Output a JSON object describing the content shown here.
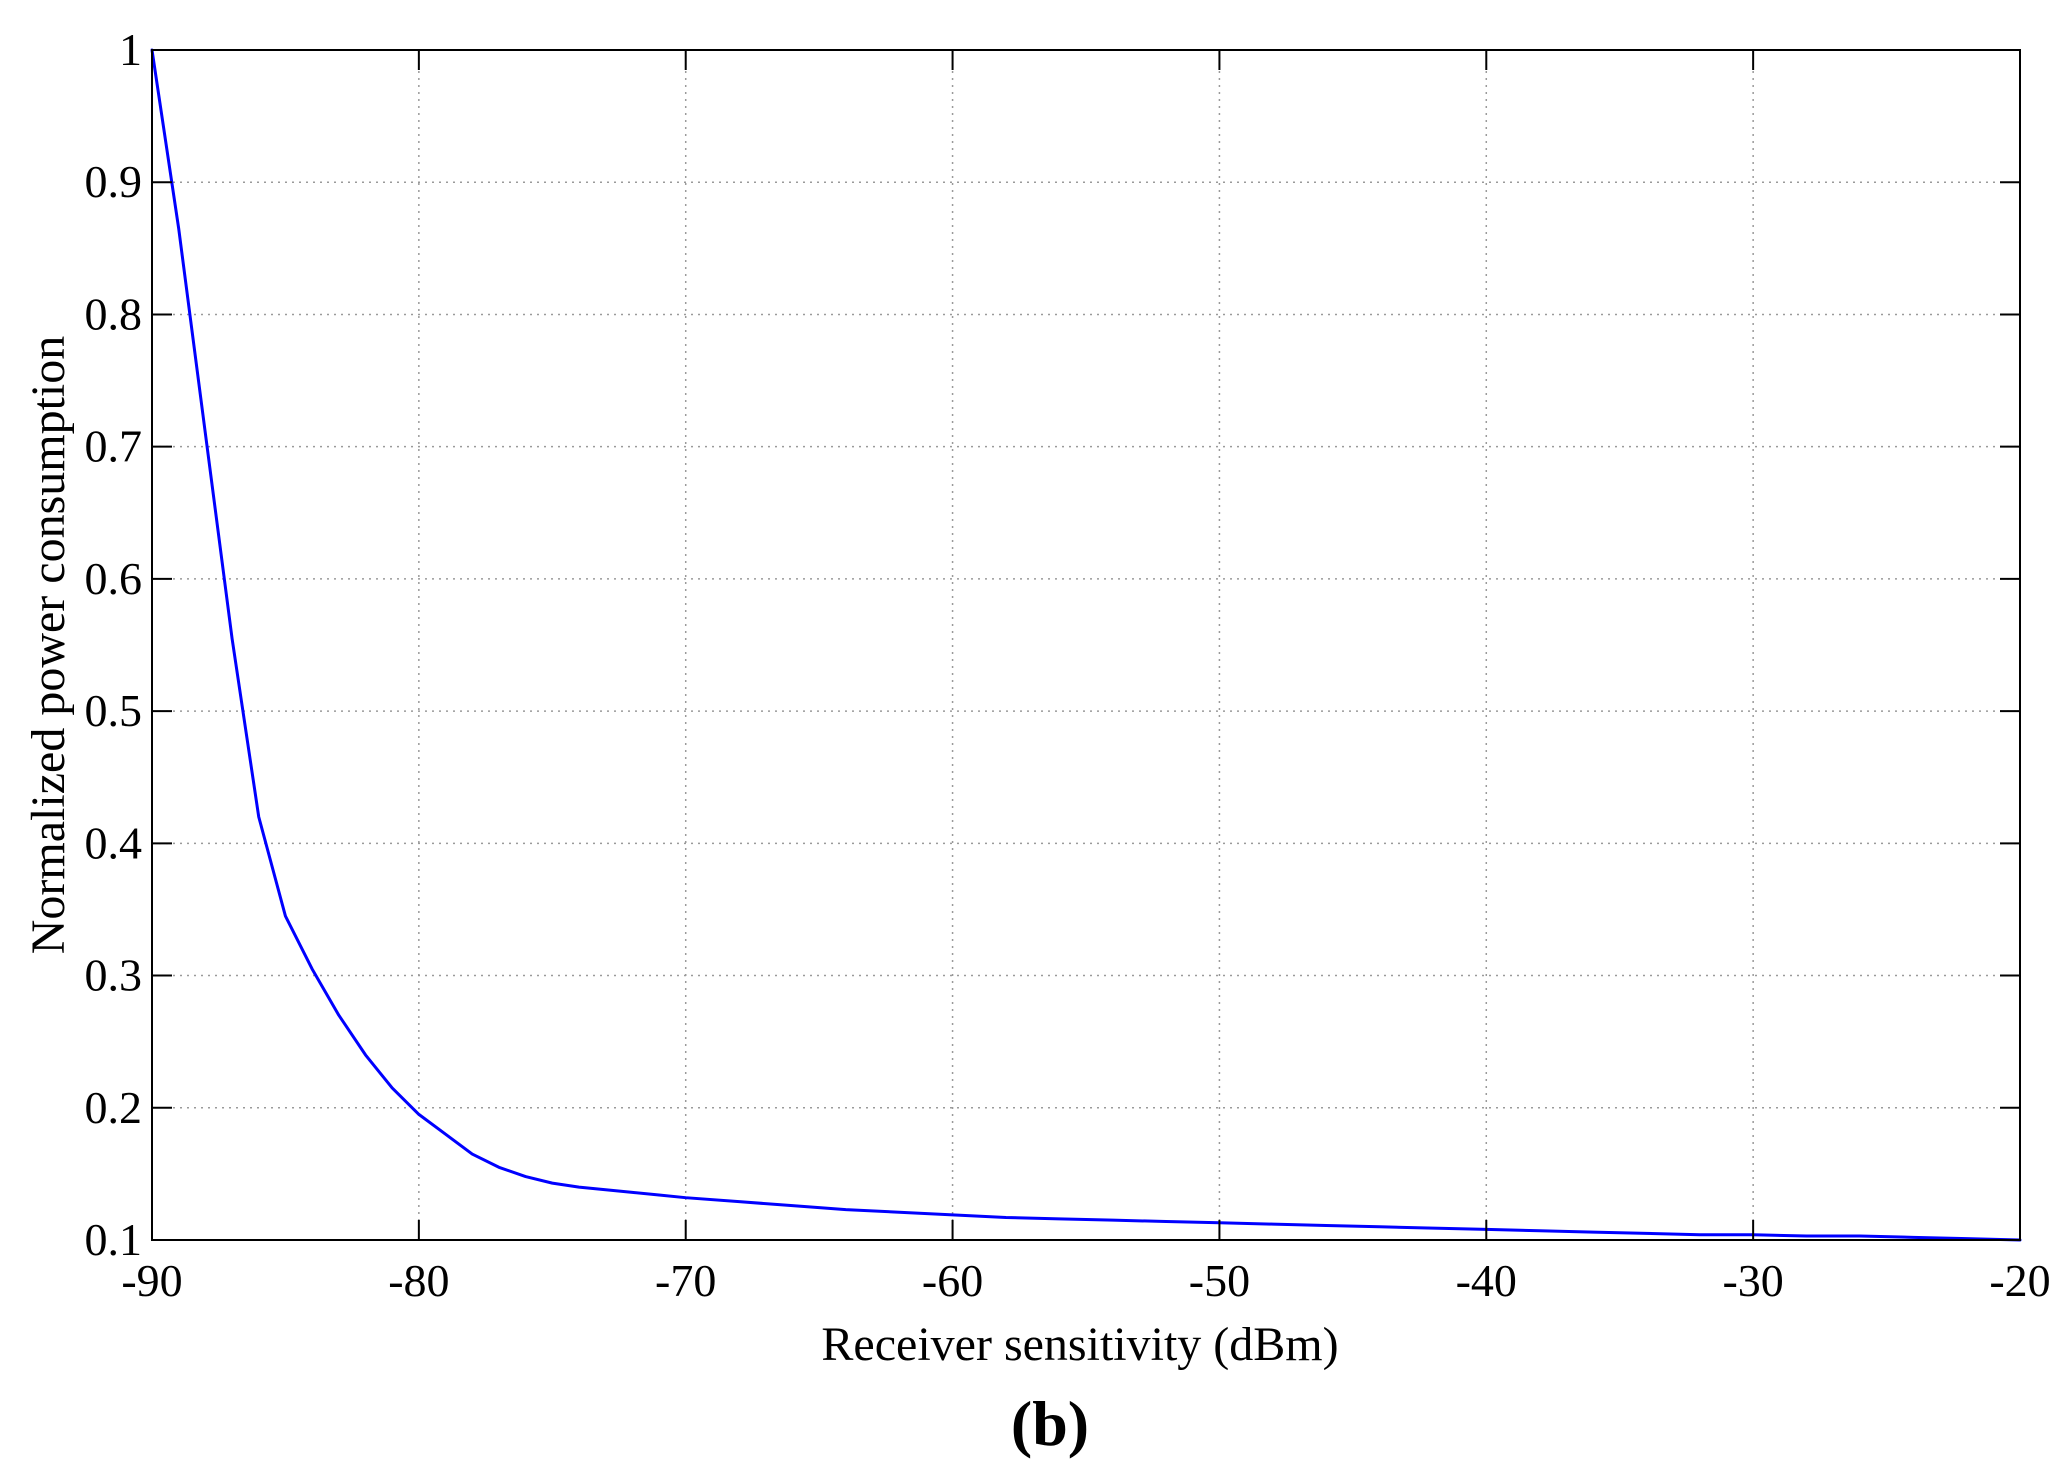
{
  "chart_data": {
    "type": "line",
    "title": "",
    "xlabel": "Receiver sensitivity (dBm)",
    "ylabel": "Normalized power consumption",
    "panel_label": "(b)",
    "xlim": [
      -90,
      -20
    ],
    "ylim": [
      0.1,
      1
    ],
    "xticks": [
      -90,
      -80,
      -70,
      -60,
      -50,
      -40,
      -30,
      -20
    ],
    "yticks": [
      0.1,
      0.2,
      0.3,
      0.4,
      0.5,
      0.6,
      0.7,
      0.8,
      0.9,
      1
    ],
    "xtick_labels": [
      "-90",
      "-80",
      "-70",
      "-60",
      "-50",
      "-40",
      "-30",
      "-20"
    ],
    "ytick_labels": [
      "0.1",
      "0.2",
      "0.3",
      "0.4",
      "0.5",
      "0.6",
      "0.7",
      "0.8",
      "0.9",
      "1"
    ],
    "grid": true,
    "legend": false,
    "colors": {
      "line": "#0000ff",
      "axes": "#000000",
      "grid": "#9a9a9a"
    },
    "series": [
      {
        "x": [
          -90,
          -89,
          -88,
          -87,
          -86,
          -85,
          -84,
          -83,
          -82,
          -81,
          -80,
          -79,
          -78,
          -77,
          -76,
          -75,
          -74,
          -73,
          -72,
          -71,
          -70,
          -68,
          -66,
          -64,
          -62,
          -60,
          -58,
          -56,
          -54,
          -52,
          -50,
          -48,
          -46,
          -44,
          -42,
          -40,
          -38,
          -36,
          -34,
          -32,
          -30,
          -28,
          -26,
          -24,
          -22,
          -20
        ],
        "y": [
          1.0,
          0.865,
          0.71,
          0.555,
          0.42,
          0.345,
          0.305,
          0.27,
          0.24,
          0.215,
          0.195,
          0.18,
          0.165,
          0.155,
          0.148,
          0.143,
          0.14,
          0.138,
          0.136,
          0.134,
          0.132,
          0.129,
          0.126,
          0.123,
          0.121,
          0.119,
          0.117,
          0.116,
          0.115,
          0.114,
          0.113,
          0.112,
          0.111,
          0.11,
          0.109,
          0.108,
          0.107,
          0.106,
          0.105,
          0.104,
          0.104,
          0.103,
          0.103,
          0.102,
          0.101,
          0.1
        ]
      }
    ]
  }
}
